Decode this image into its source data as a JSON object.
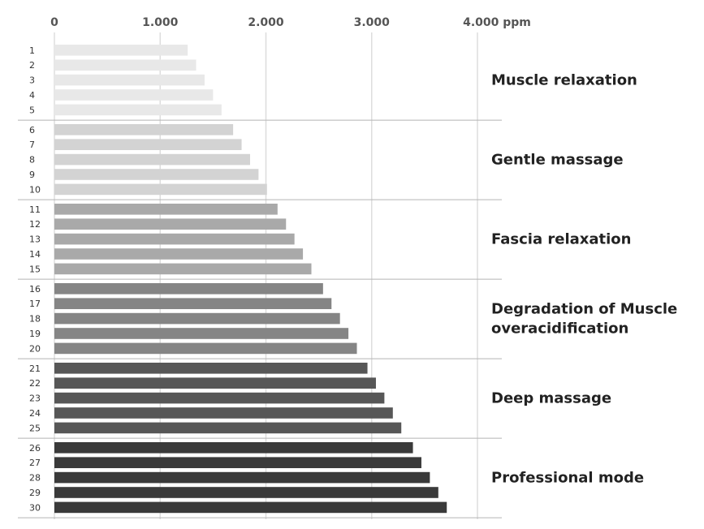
{
  "chart_data": {
    "type": "bar",
    "orientation": "horizontal",
    "unit": "ppm",
    "xlim": [
      0,
      4000
    ],
    "x_ticks": [
      0,
      1000,
      2000,
      3000,
      4000
    ],
    "x_tick_labels": [
      "0",
      "1.000",
      "2.000",
      "3.000",
      "4.000 ppm"
    ],
    "grid": true,
    "categories": [
      "1",
      "2",
      "3",
      "4",
      "5",
      "6",
      "7",
      "8",
      "9",
      "10",
      "11",
      "12",
      "13",
      "14",
      "15",
      "16",
      "17",
      "18",
      "19",
      "20",
      "21",
      "22",
      "23",
      "24",
      "25",
      "26",
      "27",
      "28",
      "29",
      "30"
    ],
    "values": [
      1260,
      1340,
      1420,
      1500,
      1580,
      1690,
      1770,
      1850,
      1930,
      2010,
      2110,
      2190,
      2270,
      2350,
      2430,
      2540,
      2620,
      2700,
      2780,
      2860,
      2960,
      3040,
      3120,
      3200,
      3280,
      3390,
      3470,
      3550,
      3630,
      3710
    ],
    "groups": [
      {
        "label": "Muscle relaxation",
        "color": "#e8e8e8",
        "start": 1,
        "end": 5
      },
      {
        "label": "Gentle massage",
        "color": "#d3d3d3",
        "start": 6,
        "end": 10
      },
      {
        "label": "Fascia relaxation",
        "color": "#a9a9a9",
        "start": 11,
        "end": 15
      },
      {
        "label": "Degradation of Muscle overacidification",
        "lines": [
          "Degradation of Muscle",
          "overacidification"
        ],
        "color": "#858585",
        "start": 16,
        "end": 20
      },
      {
        "label": "Deep massage",
        "color": "#575757",
        "start": 21,
        "end": 25
      },
      {
        "label": "Professional mode",
        "color": "#3a3a3a",
        "start": 26,
        "end": 30
      }
    ]
  }
}
